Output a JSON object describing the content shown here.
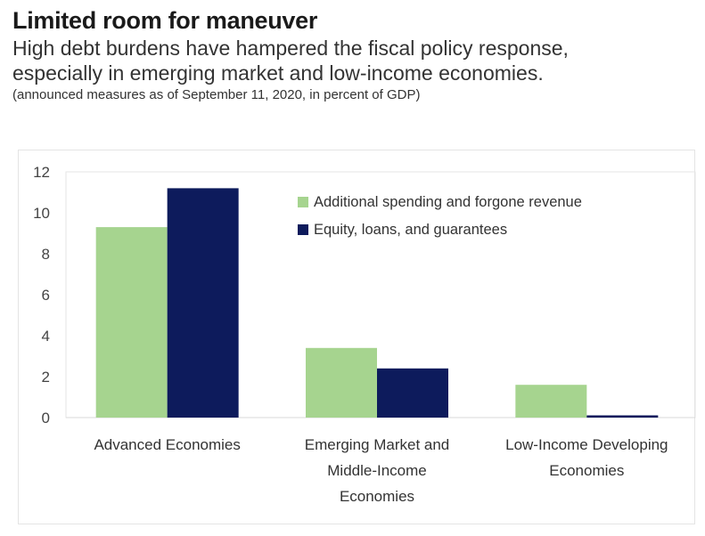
{
  "header": {
    "title": "Limited room for maneuver",
    "subtitle_line1": "High debt burdens have hampered the fiscal policy response,",
    "subtitle_line2": "especially in emerging market and low-income economies.",
    "note": "(announced measures as of September 11, 2020, in percent of GDP)"
  },
  "chart_data": {
    "type": "bar",
    "title": "Limited room for maneuver",
    "subtitle": "High debt burdens have hampered the fiscal policy response, especially in emerging market and low-income economies.",
    "note": "(announced measures as of September 11, 2020, in percent of GDP)",
    "xlabel": "",
    "ylabel": "",
    "ylim": [
      0,
      12
    ],
    "yticks": [
      0,
      2,
      4,
      6,
      8,
      10,
      12
    ],
    "grid": false,
    "legend_position": "top-right",
    "categories": [
      [
        "Advanced Economies"
      ],
      [
        "Emerging Market and",
        "Middle-Income",
        "Economies"
      ],
      [
        "Low-Income Developing",
        "Economies"
      ]
    ],
    "series": [
      {
        "name": "Additional spending and forgone revenue",
        "color": "#a6d48f",
        "values": [
          9.3,
          3.4,
          1.6
        ]
      },
      {
        "name": "Equity, loans, and guarantees",
        "color": "#0d1b5c",
        "values": [
          11.2,
          2.4,
          0.1
        ]
      }
    ]
  }
}
